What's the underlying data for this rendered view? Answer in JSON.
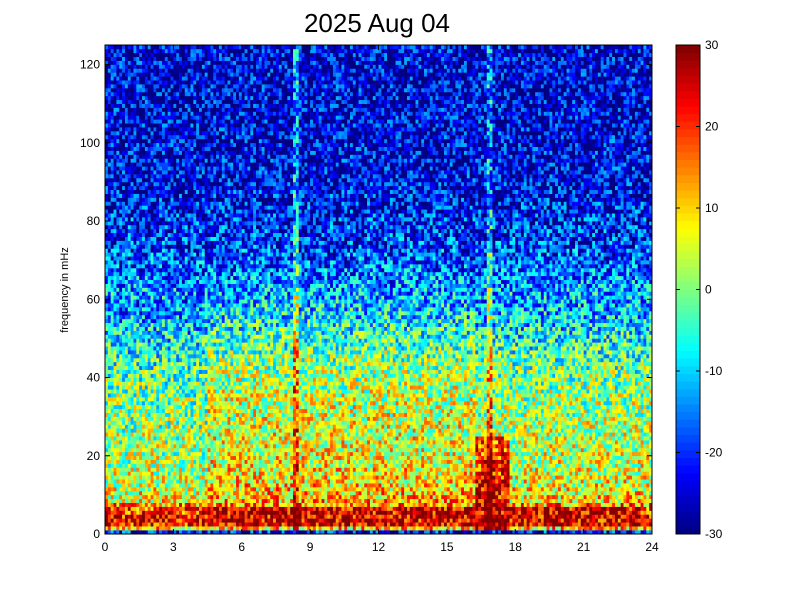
{
  "chart_data": {
    "type": "heatmap",
    "title": "2025 Aug 04",
    "xlabel": "",
    "ylabel": "frequency in mHz",
    "xlim": [
      0,
      24
    ],
    "ylim": [
      0,
      125
    ],
    "x_ticks": [
      0,
      3,
      6,
      9,
      12,
      15,
      18,
      21,
      24
    ],
    "y_ticks": [
      0,
      20,
      40,
      60,
      80,
      100,
      120
    ],
    "colorbar": {
      "range": [
        -30,
        30
      ],
      "ticks": [
        -30,
        -20,
        -10,
        0,
        10,
        20,
        30
      ],
      "colormap": "jet"
    },
    "grid": false,
    "resolution": {
      "time_bins": 192,
      "freq_bins": 125
    },
    "value_profile_vs_frequency_mHz": [
      [
        0,
        -20
      ],
      [
        2,
        20
      ],
      [
        4,
        25
      ],
      [
        8,
        12
      ],
      [
        15,
        8
      ],
      [
        25,
        6
      ],
      [
        35,
        4
      ],
      [
        45,
        0
      ],
      [
        55,
        -8
      ],
      [
        65,
        -15
      ],
      [
        75,
        -20
      ],
      [
        90,
        -24
      ],
      [
        110,
        -25
      ],
      [
        125,
        -25
      ]
    ],
    "bright_vertical_streaks_hours": [
      8.4,
      16.9
    ],
    "intense_low_frequency_band": {
      "hours": [
        4.5,
        23.5
      ],
      "freq_mHz": [
        2,
        7
      ],
      "value": 25
    },
    "peak_region": {
      "hours": [
        16.3,
        17.8
      ],
      "freq_mHz": [
        0,
        25
      ],
      "value": 28
    }
  }
}
